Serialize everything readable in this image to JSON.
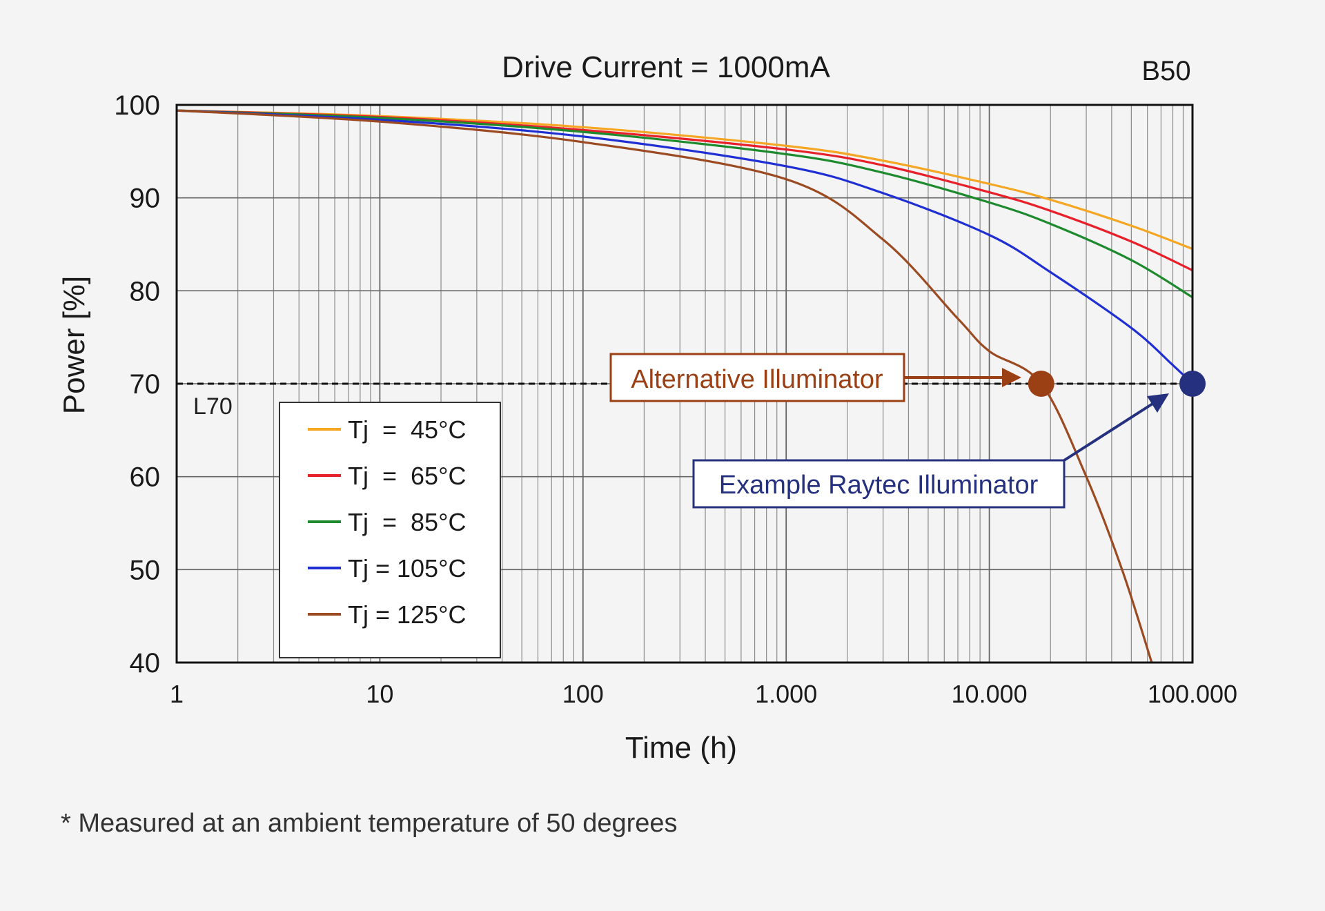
{
  "chart_data": {
    "type": "line",
    "title": "Drive Current = 1000mA",
    "corner_label": "B50",
    "xlabel": "Time (h)",
    "ylabel": "Power [%]",
    "x_scale": "log",
    "xlim": [
      1,
      100000
    ],
    "ylim": [
      40,
      100
    ],
    "x_ticks": [
      1,
      10,
      100,
      1000,
      10000,
      100000
    ],
    "x_tick_labels": [
      "1",
      "10",
      "100",
      "1.000",
      "10.000",
      "100.000"
    ],
    "y_ticks": [
      40,
      50,
      60,
      70,
      80,
      90,
      100
    ],
    "y_tick_labels": [
      "40",
      "50",
      "60",
      "70",
      "80",
      "90",
      "100"
    ],
    "grid": true,
    "legend_position": "lower-left",
    "series": [
      {
        "name": "Tj  =  45°C",
        "color": "#f5a623",
        "x": [
          1,
          10,
          100,
          1000,
          3000,
          10000,
          20000,
          50000,
          100000
        ],
        "y": [
          99.4,
          98.8,
          97.6,
          95.6,
          94.0,
          91.5,
          89.8,
          87.0,
          84.5
        ]
      },
      {
        "name": "Tj  =  65°C",
        "color": "#e8202a",
        "x": [
          1,
          10,
          100,
          1000,
          3000,
          10000,
          20000,
          50000,
          100000
        ],
        "y": [
          99.4,
          98.7,
          97.3,
          95.2,
          93.5,
          90.6,
          88.6,
          85.3,
          82.2
        ]
      },
      {
        "name": "Tj  =  85°C",
        "color": "#1e8a2e",
        "x": [
          1,
          10,
          100,
          1000,
          3000,
          10000,
          20000,
          50000,
          100000
        ],
        "y": [
          99.4,
          98.6,
          97.1,
          94.7,
          92.7,
          89.5,
          87.2,
          83.3,
          79.3
        ]
      },
      {
        "name": "Tj = 105°C",
        "color": "#1f2fd4",
        "x": [
          1,
          10,
          100,
          1000,
          3000,
          10000,
          20000,
          50000,
          80000,
          100000
        ],
        "y": [
          99.4,
          98.4,
          96.6,
          93.4,
          90.5,
          86.0,
          82.0,
          76.0,
          72.0,
          70.0
        ]
      },
      {
        "name": "Tj = 125°C",
        "color": "#9b4a22",
        "x": [
          1,
          10,
          100,
          1000,
          3000,
          7000,
          10000,
          18000,
          30000,
          45000,
          63000
        ],
        "y": [
          99.4,
          98.2,
          96.0,
          92.0,
          85.5,
          77.0,
          73.5,
          70.0,
          60.0,
          50.0,
          40.0
        ]
      }
    ],
    "reference_line": {
      "y": 70,
      "label": "L70",
      "style": "dashed"
    },
    "annotations": [
      {
        "text": "Alternative Illuminator",
        "color": "#9b3f14",
        "point": {
          "x": 18000,
          "y": 70
        }
      },
      {
        "text": "Example Raytec Illuminator",
        "color": "#25317e",
        "point": {
          "x": 100000,
          "y": 70
        }
      }
    ],
    "footnote": "* Measured at an ambient temperature of 50 degrees"
  }
}
